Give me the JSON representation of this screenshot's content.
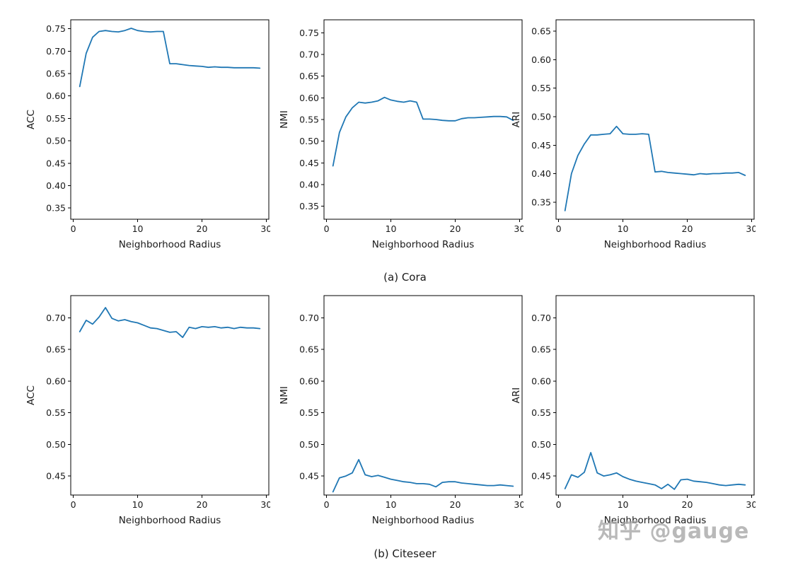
{
  "figure": {
    "background": "#ffffff",
    "line_color": "#1f77b4",
    "captions": {
      "a": "(a) Cora",
      "b": "(b) Citeseer"
    },
    "watermark": "知乎 @gauge"
  },
  "chart_data": [
    {
      "type": "line",
      "dataset": "Cora",
      "metric": "ACC",
      "xlabel": "Neighborhood Radius",
      "ylabel": "ACC",
      "x": [
        1,
        2,
        3,
        4,
        5,
        6,
        7,
        8,
        9,
        10,
        11,
        12,
        13,
        14,
        15,
        16,
        17,
        18,
        19,
        20,
        21,
        22,
        23,
        24,
        25,
        26,
        27,
        28,
        29
      ],
      "y": [
        0.621,
        0.695,
        0.731,
        0.744,
        0.746,
        0.744,
        0.743,
        0.746,
        0.751,
        0.746,
        0.744,
        0.743,
        0.744,
        0.744,
        0.672,
        0.672,
        0.67,
        0.668,
        0.667,
        0.666,
        0.664,
        0.665,
        0.664,
        0.664,
        0.663,
        0.663,
        0.663,
        0.663,
        0.662
      ],
      "xlim": [
        -0.4,
        30.4
      ],
      "ylim": [
        0.325,
        0.77
      ],
      "xticks": [
        0,
        10,
        20,
        30
      ],
      "yticks": [
        0.35,
        0.4,
        0.45,
        0.5,
        0.55,
        0.6,
        0.65,
        0.7,
        0.75
      ],
      "grid": false,
      "legend": false
    },
    {
      "type": "line",
      "dataset": "Cora",
      "metric": "NMI",
      "xlabel": "Neighborhood Radius",
      "ylabel": "NMI",
      "x": [
        1,
        2,
        3,
        4,
        5,
        6,
        7,
        8,
        9,
        10,
        11,
        12,
        13,
        14,
        15,
        16,
        17,
        18,
        19,
        20,
        21,
        22,
        23,
        24,
        25,
        26,
        27,
        28,
        29
      ],
      "y": [
        0.443,
        0.52,
        0.556,
        0.577,
        0.59,
        0.588,
        0.59,
        0.593,
        0.601,
        0.595,
        0.592,
        0.59,
        0.593,
        0.59,
        0.551,
        0.551,
        0.55,
        0.548,
        0.547,
        0.547,
        0.552,
        0.554,
        0.554,
        0.555,
        0.556,
        0.557,
        0.557,
        0.556,
        0.548
      ],
      "xlim": [
        -0.4,
        30.4
      ],
      "ylim": [
        0.32,
        0.78
      ],
      "xticks": [
        0,
        10,
        20,
        30
      ],
      "yticks": [
        0.35,
        0.4,
        0.45,
        0.5,
        0.55,
        0.6,
        0.65,
        0.7,
        0.75
      ],
      "grid": false,
      "legend": false
    },
    {
      "type": "line",
      "dataset": "Cora",
      "metric": "ARI",
      "xlabel": "Neighborhood Radius",
      "ylabel": "ARI",
      "x": [
        1,
        2,
        3,
        4,
        5,
        6,
        7,
        8,
        9,
        10,
        11,
        12,
        13,
        14,
        15,
        16,
        17,
        18,
        19,
        20,
        21,
        22,
        23,
        24,
        25,
        26,
        27,
        28,
        29
      ],
      "y": [
        0.335,
        0.4,
        0.432,
        0.452,
        0.468,
        0.468,
        0.469,
        0.47,
        0.483,
        0.47,
        0.469,
        0.469,
        0.47,
        0.469,
        0.403,
        0.404,
        0.402,
        0.401,
        0.4,
        0.399,
        0.398,
        0.4,
        0.399,
        0.4,
        0.4,
        0.401,
        0.401,
        0.402,
        0.397
      ],
      "xlim": [
        -0.4,
        30.4
      ],
      "ylim": [
        0.32,
        0.67
      ],
      "xticks": [
        0,
        10,
        20,
        30
      ],
      "yticks": [
        0.35,
        0.4,
        0.45,
        0.5,
        0.55,
        0.6,
        0.65
      ],
      "grid": false,
      "legend": false
    },
    {
      "type": "line",
      "dataset": "Citeseer",
      "metric": "ACC",
      "xlabel": "Neighborhood Radius",
      "ylabel": "ACC",
      "x": [
        1,
        2,
        3,
        4,
        5,
        6,
        7,
        8,
        9,
        10,
        11,
        12,
        13,
        14,
        15,
        16,
        17,
        18,
        19,
        20,
        21,
        22,
        23,
        24,
        25,
        26,
        27,
        28,
        29
      ],
      "y": [
        0.678,
        0.696,
        0.69,
        0.701,
        0.716,
        0.699,
        0.695,
        0.697,
        0.694,
        0.692,
        0.688,
        0.684,
        0.683,
        0.68,
        0.677,
        0.678,
        0.669,
        0.685,
        0.683,
        0.686,
        0.685,
        0.686,
        0.684,
        0.685,
        0.683,
        0.685,
        0.684,
        0.684,
        0.683
      ],
      "xlim": [
        -0.4,
        30.4
      ],
      "ylim": [
        0.42,
        0.735
      ],
      "xticks": [
        0,
        10,
        20,
        30
      ],
      "yticks": [
        0.45,
        0.5,
        0.55,
        0.6,
        0.65,
        0.7
      ],
      "grid": false,
      "legend": false
    },
    {
      "type": "line",
      "dataset": "Citeseer",
      "metric": "NMI",
      "xlabel": "Neighborhood Radius",
      "ylabel": "NMI",
      "x": [
        1,
        2,
        3,
        4,
        5,
        6,
        7,
        8,
        9,
        10,
        11,
        12,
        13,
        14,
        15,
        16,
        17,
        18,
        19,
        20,
        21,
        22,
        23,
        24,
        25,
        26,
        27,
        28,
        29
      ],
      "y": [
        0.425,
        0.447,
        0.45,
        0.455,
        0.476,
        0.452,
        0.449,
        0.451,
        0.448,
        0.445,
        0.443,
        0.441,
        0.44,
        0.438,
        0.438,
        0.437,
        0.433,
        0.44,
        0.441,
        0.441,
        0.439,
        0.438,
        0.437,
        0.436,
        0.435,
        0.435,
        0.436,
        0.435,
        0.434
      ],
      "xlim": [
        -0.4,
        30.4
      ],
      "ylim": [
        0.42,
        0.735
      ],
      "xticks": [
        0,
        10,
        20,
        30
      ],
      "yticks": [
        0.45,
        0.5,
        0.55,
        0.6,
        0.65,
        0.7
      ],
      "grid": false,
      "legend": false
    },
    {
      "type": "line",
      "dataset": "Citeseer",
      "metric": "ARI",
      "xlabel": "Neighborhood Radius",
      "ylabel": "ARI",
      "x": [
        1,
        2,
        3,
        4,
        5,
        6,
        7,
        8,
        9,
        10,
        11,
        12,
        13,
        14,
        15,
        16,
        17,
        18,
        19,
        20,
        21,
        22,
        23,
        24,
        25,
        26,
        27,
        28,
        29
      ],
      "y": [
        0.43,
        0.452,
        0.448,
        0.456,
        0.487,
        0.455,
        0.45,
        0.452,
        0.455,
        0.449,
        0.445,
        0.442,
        0.44,
        0.438,
        0.436,
        0.43,
        0.437,
        0.429,
        0.444,
        0.445,
        0.442,
        0.441,
        0.44,
        0.438,
        0.436,
        0.435,
        0.436,
        0.437,
        0.436
      ],
      "xlim": [
        -0.4,
        30.4
      ],
      "ylim": [
        0.42,
        0.735
      ],
      "xticks": [
        0,
        10,
        20,
        30
      ],
      "yticks": [
        0.45,
        0.5,
        0.55,
        0.6,
        0.65,
        0.7
      ],
      "grid": false,
      "legend": false
    }
  ]
}
